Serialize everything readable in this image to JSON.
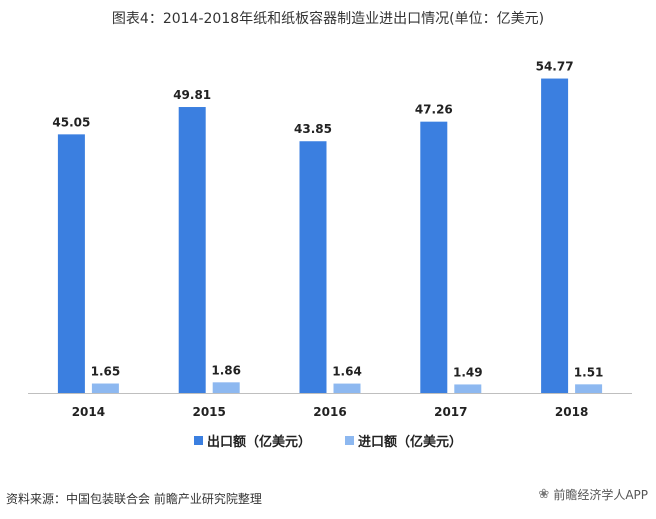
{
  "title": "图表4：2014-2018年纸和纸板容器制造业进出口情况(单位：亿美元)",
  "source": "资料来源：中国包装联合会 前瞻产业研究院整理",
  "brand": "前瞻经济学人APP",
  "chart_data": {
    "type": "bar",
    "categories": [
      "2014",
      "2015",
      "2016",
      "2017",
      "2018"
    ],
    "series": [
      {
        "name": "出口额（亿美元）",
        "color": "#3b7fe0",
        "values": [
          45.05,
          49.81,
          43.85,
          47.26,
          54.77
        ]
      },
      {
        "name": "进口额（亿美元）",
        "color": "#8db8f0",
        "values": [
          1.65,
          1.86,
          1.64,
          1.49,
          1.51
        ]
      }
    ],
    "ylim": [
      0,
      58
    ],
    "grid": false,
    "legend": "bottom"
  }
}
